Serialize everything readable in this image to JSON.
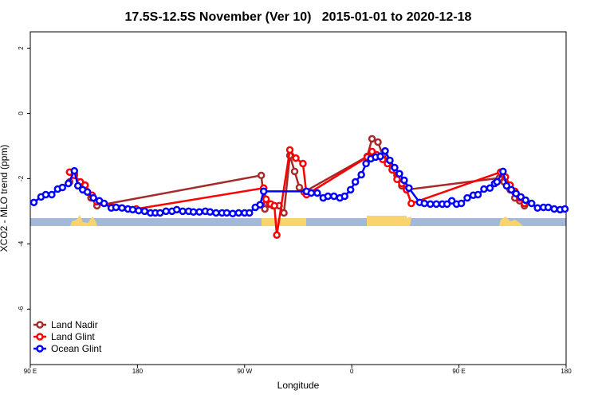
{
  "chart_data": {
    "type": "line",
    "title": "17.5S-12.5S November (Ver 10)   2015-01-01 to 2020-12-18",
    "x_label": "Longitude",
    "y_label": "XCO2 - MLO trend (ppm)",
    "xlim": [
      90,
      540
    ],
    "ylim": [
      -7.7,
      2.5
    ],
    "xticks": [
      {
        "value": 90,
        "label": "90 E"
      },
      180,
      {
        "value": 270,
        "label": "90 W"
      },
      {
        "value": 360,
        "label": "0"
      },
      {
        "value": 450,
        "label": "90 E"
      },
      {
        "value": 540,
        "label": "180"
      }
    ],
    "yticks": [
      2,
      0,
      -2,
      -4,
      -6
    ],
    "legend": "bottom-left",
    "series": [
      {
        "name": "Land Nadir",
        "color": "#a52a2a",
        "x": [
          123,
          127,
          131,
          136,
          141,
          146,
          284,
          287,
          291,
          294,
          299,
          303,
          308,
          312,
          316,
          320,
          373,
          377,
          382,
          386,
          391,
          394,
          398,
          402,
          406,
          484,
          488,
          493,
          497,
          501,
          505
        ],
        "values": [
          -2.1,
          -1.85,
          -2.2,
          -2.34,
          -2.59,
          -2.83,
          -1.9,
          -2.93,
          -2.78,
          -2.83,
          -2.83,
          -3.05,
          -1.29,
          -1.78,
          -2.27,
          -2.41,
          -1.32,
          -0.78,
          -0.88,
          -1.29,
          -1.44,
          -1.73,
          -1.9,
          -2.22,
          -2.34,
          -1.98,
          -2.1,
          -2.34,
          -2.59,
          -2.68,
          -2.83
        ]
      },
      {
        "name": "Land Glint",
        "color": "#ff0000",
        "x": [
          123,
          127,
          132,
          136,
          142,
          146,
          179,
          286,
          288,
          292,
          295,
          297,
          308,
          313,
          319,
          322,
          373,
          377,
          381,
          386,
          390,
          394,
          398,
          402,
          406,
          410,
          485,
          489,
          493,
          497,
          501,
          505
        ],
        "values": [
          -1.8,
          -1.9,
          -2.1,
          -2.2,
          -2.51,
          -2.71,
          -2.93,
          -2.29,
          -2.63,
          -2.78,
          -2.83,
          -3.73,
          -1.12,
          -1.37,
          -1.54,
          -2.49,
          -1.34,
          -1.17,
          -1.27,
          -1.41,
          -1.54,
          -1.73,
          -2.02,
          -2.15,
          -2.34,
          -2.76,
          -1.8,
          -1.95,
          -2.2,
          -2.39,
          -2.59,
          -2.76
        ]
      },
      {
        "name": "Ocean Glint",
        "color": "#0000ff",
        "x": [
          93,
          99,
          103,
          108,
          113,
          117,
          122,
          127,
          130,
          134,
          138,
          143,
          148,
          152,
          158,
          162,
          167,
          172,
          176,
          181,
          186,
          191,
          195,
          199,
          204,
          209,
          213,
          218,
          223,
          227,
          232,
          237,
          241,
          246,
          251,
          255,
          260,
          265,
          270,
          274,
          279,
          283,
          286,
          322,
          326,
          331,
          336,
          340,
          345,
          350,
          354,
          359,
          363,
          368,
          372,
          376,
          380,
          384,
          388,
          392,
          396,
          400,
          404,
          408,
          417,
          421,
          426,
          431,
          436,
          440,
          444,
          448,
          452,
          457,
          462,
          466,
          471,
          476,
          480,
          482,
          487,
          490,
          494,
          498,
          502,
          506,
          511,
          516,
          521,
          525,
          530,
          535,
          539
        ],
        "values": [
          -2.73,
          -2.56,
          -2.49,
          -2.49,
          -2.32,
          -2.27,
          -2.15,
          -1.76,
          -2.22,
          -2.34,
          -2.41,
          -2.59,
          -2.68,
          -2.76,
          -2.9,
          -2.88,
          -2.9,
          -2.93,
          -2.95,
          -2.98,
          -3.0,
          -3.05,
          -3.05,
          -3.05,
          -3.0,
          -3.0,
          -2.95,
          -3.0,
          -3.0,
          -3.02,
          -3.02,
          -3.0,
          -3.02,
          -3.05,
          -3.05,
          -3.05,
          -3.07,
          -3.05,
          -3.05,
          -3.05,
          -2.88,
          -2.8,
          -2.39,
          -2.39,
          -2.44,
          -2.44,
          -2.59,
          -2.54,
          -2.54,
          -2.59,
          -2.54,
          -2.34,
          -2.1,
          -1.88,
          -1.54,
          -1.39,
          -1.34,
          -1.32,
          -1.15,
          -1.44,
          -1.66,
          -1.85,
          -2.05,
          -2.29,
          -2.73,
          -2.76,
          -2.78,
          -2.78,
          -2.78,
          -2.78,
          -2.68,
          -2.78,
          -2.76,
          -2.59,
          -2.51,
          -2.49,
          -2.32,
          -2.29,
          -2.15,
          -2.1,
          -1.78,
          -2.22,
          -2.34,
          -2.46,
          -2.56,
          -2.66,
          -2.76,
          -2.9,
          -2.88,
          -2.88,
          -2.93,
          -2.95,
          -2.93
        ]
      }
    ]
  }
}
